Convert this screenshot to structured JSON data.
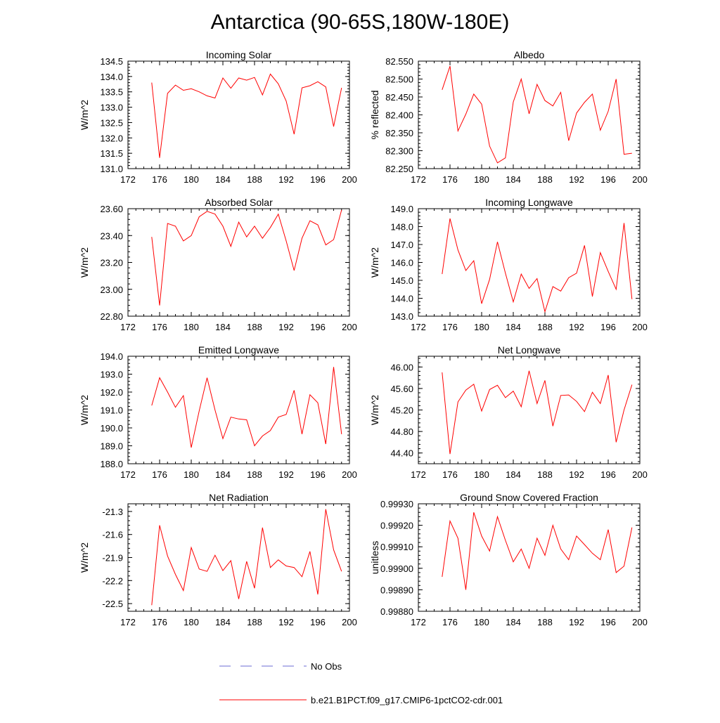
{
  "title": "Antarctica (90-65S,180W-180E)",
  "series_color": "#ff0000",
  "obs_color": "#6b6bd6",
  "legend": {
    "obs_label": "No Obs",
    "model_label": "b.e21.B1PCT.f09_g17.CMIP6-1pctCO2-cdr.001"
  },
  "chart_data": [
    {
      "type": "line",
      "title": "Incoming Solar",
      "ylabel": "W/m^2",
      "xlim": [
        172,
        200
      ],
      "ylim": [
        131.0,
        134.5
      ],
      "xticks": [
        172,
        176,
        180,
        184,
        188,
        192,
        196,
        200
      ],
      "yticks": [
        "131.0",
        "131.5",
        "132.0",
        "132.5",
        "133.0",
        "133.5",
        "134.0",
        "134.5"
      ],
      "x": [
        175,
        176,
        177,
        178,
        179,
        180,
        181,
        182,
        183,
        184,
        185,
        186,
        187,
        188,
        189,
        190,
        191,
        192,
        193,
        194,
        195,
        196,
        197,
        198,
        199
      ],
      "y": [
        133.8,
        131.35,
        133.45,
        133.72,
        133.55,
        133.6,
        133.5,
        133.37,
        133.3,
        133.95,
        133.62,
        133.95,
        133.88,
        133.97,
        133.4,
        134.08,
        133.76,
        133.2,
        132.12,
        133.63,
        133.7,
        133.83,
        133.66,
        132.37,
        133.63
      ]
    },
    {
      "type": "line",
      "title": "Albedo",
      "ylabel": "% reflected",
      "xlim": [
        172,
        200
      ],
      "ylim": [
        82.25,
        82.55
      ],
      "xticks": [
        172,
        176,
        180,
        184,
        188,
        192,
        196,
        200
      ],
      "yticks": [
        "82.250",
        "82.300",
        "82.350",
        "82.400",
        "82.450",
        "82.500",
        "82.550"
      ],
      "x": [
        175,
        176,
        177,
        178,
        179,
        180,
        181,
        182,
        183,
        184,
        185,
        186,
        187,
        188,
        189,
        190,
        191,
        192,
        193,
        194,
        195,
        196,
        197,
        198,
        199
      ],
      "y": [
        82.47,
        82.536,
        82.355,
        82.402,
        82.458,
        82.43,
        82.313,
        82.266,
        82.28,
        82.436,
        82.5,
        82.403,
        82.485,
        82.44,
        82.425,
        82.463,
        82.328,
        82.405,
        82.435,
        82.458,
        82.357,
        82.41,
        82.5,
        82.29,
        82.293
      ]
    },
    {
      "type": "line",
      "title": "Absorbed Solar",
      "ylabel": "W/m^2",
      "xlim": [
        172,
        200
      ],
      "ylim": [
        22.8,
        23.6
      ],
      "xticks": [
        172,
        176,
        180,
        184,
        188,
        192,
        196,
        200
      ],
      "yticks": [
        "22.80",
        "23.00",
        "23.20",
        "23.40",
        "23.60"
      ],
      "x": [
        175,
        176,
        177,
        178,
        179,
        180,
        181,
        182,
        183,
        184,
        185,
        186,
        187,
        188,
        189,
        190,
        191,
        192,
        193,
        194,
        195,
        196,
        197,
        198,
        199
      ],
      "y": [
        23.39,
        22.88,
        23.49,
        23.47,
        23.36,
        23.4,
        23.54,
        23.58,
        23.56,
        23.47,
        23.32,
        23.5,
        23.39,
        23.47,
        23.38,
        23.46,
        23.56,
        23.36,
        23.14,
        23.38,
        23.51,
        23.48,
        23.33,
        23.37,
        23.59
      ]
    },
    {
      "type": "line",
      "title": "Incoming Longwave",
      "ylabel": "W/m^2",
      "xlim": [
        172,
        200
      ],
      "ylim": [
        143.0,
        149.0
      ],
      "xticks": [
        172,
        176,
        180,
        184,
        188,
        192,
        196,
        200
      ],
      "yticks": [
        "143.0",
        "144.0",
        "145.0",
        "146.0",
        "147.0",
        "148.0",
        "149.0"
      ],
      "x": [
        175,
        176,
        177,
        178,
        179,
        180,
        181,
        182,
        183,
        184,
        185,
        186,
        187,
        188,
        189,
        190,
        191,
        192,
        193,
        194,
        195,
        196,
        197,
        198,
        199
      ],
      "y": [
        145.35,
        148.45,
        146.7,
        145.55,
        146.1,
        143.7,
        145.05,
        147.15,
        145.4,
        143.8,
        145.35,
        144.55,
        145.1,
        143.25,
        144.65,
        144.4,
        145.15,
        145.4,
        146.95,
        144.1,
        146.55,
        145.5,
        144.5,
        148.2,
        143.95
      ]
    },
    {
      "type": "line",
      "title": "Emitted Longwave",
      "ylabel": "W/m^2",
      "xlim": [
        172,
        200
      ],
      "ylim": [
        188.0,
        194.0
      ],
      "xticks": [
        172,
        176,
        180,
        184,
        188,
        192,
        196,
        200
      ],
      "yticks": [
        "188.0",
        "189.0",
        "190.0",
        "191.0",
        "192.0",
        "193.0",
        "194.0"
      ],
      "x": [
        175,
        176,
        177,
        178,
        179,
        180,
        181,
        182,
        183,
        184,
        185,
        186,
        187,
        188,
        189,
        190,
        191,
        192,
        193,
        194,
        195,
        196,
        197,
        198,
        199
      ],
      "y": [
        191.25,
        192.8,
        192.0,
        191.15,
        191.8,
        188.9,
        190.95,
        192.8,
        191.0,
        189.4,
        190.6,
        190.5,
        190.45,
        189.0,
        189.55,
        189.85,
        190.6,
        190.75,
        192.1,
        189.65,
        191.85,
        191.4,
        189.1,
        193.4,
        189.65
      ]
    },
    {
      "type": "line",
      "title": "Net Longwave",
      "ylabel": "W/m^2",
      "xlim": [
        172,
        200
      ],
      "ylim": [
        44.2,
        46.2
      ],
      "xticks": [
        172,
        176,
        180,
        184,
        188,
        192,
        196,
        200
      ],
      "yticks": [
        "44.40",
        "44.80",
        "45.20",
        "45.60",
        "46.00"
      ],
      "x": [
        175,
        176,
        177,
        178,
        179,
        180,
        181,
        182,
        183,
        184,
        185,
        186,
        187,
        188,
        189,
        190,
        191,
        192,
        193,
        194,
        195,
        196,
        197,
        198,
        199
      ],
      "y": [
        45.9,
        44.38,
        45.35,
        45.57,
        45.68,
        45.18,
        45.58,
        45.66,
        45.43,
        45.55,
        45.26,
        45.93,
        45.32,
        45.75,
        44.9,
        45.47,
        45.48,
        45.36,
        45.17,
        45.53,
        45.32,
        45.85,
        44.6,
        45.2,
        45.67
      ]
    },
    {
      "type": "line",
      "title": "Net Radiation",
      "ylabel": "W/m^2",
      "xlim": [
        172,
        200
      ],
      "ylim": [
        -22.6,
        -21.2
      ],
      "xticks": [
        172,
        176,
        180,
        184,
        188,
        192,
        196,
        200
      ],
      "yticks": [
        "-22.5",
        "-22.2",
        "-21.9",
        "-21.6",
        "-21.3"
      ],
      "x": [
        175,
        176,
        177,
        178,
        179,
        180,
        181,
        182,
        183,
        184,
        185,
        186,
        187,
        188,
        189,
        190,
        191,
        192,
        193,
        194,
        195,
        196,
        197,
        198,
        199
      ],
      "y": [
        -22.52,
        -21.48,
        -21.88,
        -22.12,
        -22.33,
        -21.77,
        -22.05,
        -22.08,
        -21.87,
        -22.07,
        -21.94,
        -22.44,
        -21.95,
        -22.3,
        -21.51,
        -22.03,
        -21.93,
        -22.01,
        -22.03,
        -22.15,
        -21.82,
        -22.38,
        -21.27,
        -21.8,
        -22.08
      ]
    },
    {
      "type": "line",
      "title": "Ground Snow Covered Fraction",
      "ylabel": "unitless",
      "xlim": [
        172,
        200
      ],
      "ylim": [
        0.9988,
        0.9993
      ],
      "xticks": [
        172,
        176,
        180,
        184,
        188,
        192,
        196,
        200
      ],
      "yticks": [
        "0.99880",
        "0.99890",
        "0.99900",
        "0.99910",
        "0.99920",
        "0.99930"
      ],
      "x": [
        175,
        176,
        177,
        178,
        179,
        180,
        181,
        182,
        183,
        184,
        185,
        186,
        187,
        188,
        189,
        190,
        191,
        192,
        193,
        194,
        195,
        196,
        197,
        198,
        199
      ],
      "y": [
        0.99896,
        0.99922,
        0.99914,
        0.9989,
        0.99926,
        0.99915,
        0.99908,
        0.99924,
        0.99913,
        0.99903,
        0.99909,
        0.999,
        0.99914,
        0.99906,
        0.9992,
        0.99909,
        0.99904,
        0.99915,
        0.99911,
        0.99907,
        0.99904,
        0.99918,
        0.99898,
        0.99901,
        0.99919
      ]
    }
  ]
}
